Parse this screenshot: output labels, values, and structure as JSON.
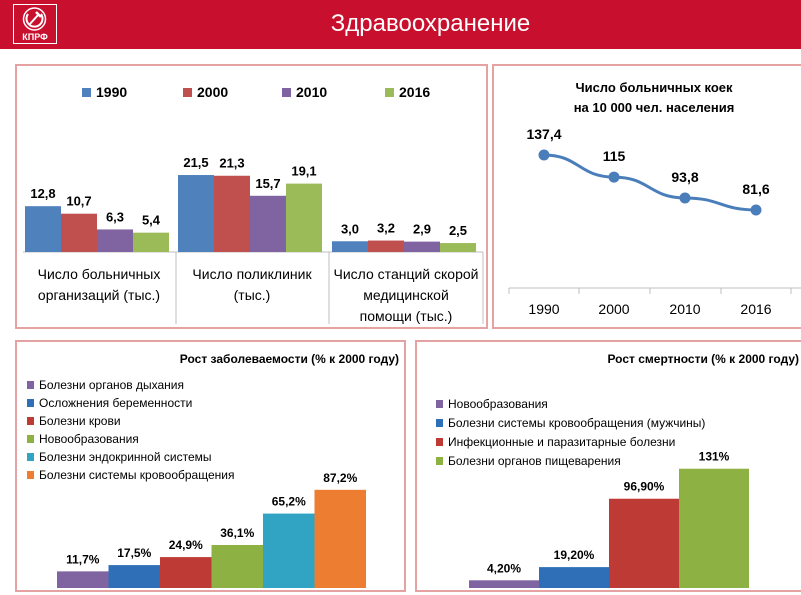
{
  "header": {
    "title": "Здравоохранение",
    "logo_text": "КПРФ",
    "background_color": "#c8102e"
  },
  "chart_data": [
    {
      "type": "bar",
      "title": "",
      "categories": [
        [
          "Число больничных",
          "организаций (тыс.)"
        ],
        [
          "Число поликлиник",
          "(тыс.)"
        ],
        [
          "Число станций скорой",
          "медицинской",
          "помощи (тыс.)"
        ]
      ],
      "series": [
        {
          "name": "1990",
          "color": "#4f81bd",
          "values": [
            12.8,
            21.5,
            3.0
          ],
          "labels": [
            "12,8",
            "21,5",
            "3,0"
          ]
        },
        {
          "name": "2000",
          "color": "#c0504d",
          "values": [
            10.7,
            21.3,
            3.2
          ],
          "labels": [
            "10,7",
            "21,3",
            "3,2"
          ]
        },
        {
          "name": "2010",
          "color": "#8064a2",
          "values": [
            6.3,
            15.7,
            2.9
          ],
          "labels": [
            "6,3",
            "15,7",
            "2,9"
          ]
        },
        {
          "name": "2016",
          "color": "#9bbb59",
          "values": [
            5.4,
            19.1,
            2.5
          ],
          "labels": [
            "5,4",
            "19,1",
            "2,5"
          ]
        }
      ],
      "legend": "top",
      "ylim": [
        0,
        25
      ]
    },
    {
      "type": "line",
      "title": [
        "Число больничных коек",
        "на 10 000 чел. населения"
      ],
      "x": [
        "1990",
        "2000",
        "2010",
        "2016"
      ],
      "series": [
        {
          "name": "beds",
          "color": "#4a7ebb",
          "values": [
            137.4,
            115,
            93.8,
            81.6
          ],
          "labels": [
            "137,4",
            "115",
            "93,8",
            "81,6"
          ]
        }
      ],
      "ylim": [
        60,
        160
      ]
    },
    {
      "type": "bar",
      "title": "Рост заболеваемости (% к 2000 году)",
      "series": [
        {
          "name": "Болезни органов дыхания",
          "color": "#8064a2",
          "value": 11.7,
          "label": "11,7%"
        },
        {
          "name": "Осложнения беременности",
          "color": "#2e6fb7",
          "value": 17.5,
          "label": "17,5%"
        },
        {
          "name": "Болезни крови",
          "color": "#be3a34",
          "value": 24.9,
          "label": "24,9%"
        },
        {
          "name": "Новообразования",
          "color": "#8db143",
          "value": 36.1,
          "label": "36,1%"
        },
        {
          "name": "Болезни эндокринной системы",
          "color": "#31a4c4",
          "value": 65.2,
          "label": "65,2%"
        },
        {
          "name": "Болезни системы кровообращения",
          "color": "#ed7d31",
          "value": 87.2,
          "label": "87,2%"
        }
      ],
      "legend": "top-left",
      "ylim": [
        0,
        100
      ]
    },
    {
      "type": "bar",
      "title": "Рост смертности (% к 2000 году)",
      "series": [
        {
          "name": "Новообразования",
          "color": "#8064a2",
          "value": 4.2,
          "label": "4,20%"
        },
        {
          "name": "Болезни системы кровообращения (мужчины)",
          "color": "#2e6fb7",
          "value": 19.2,
          "label": "19,20%"
        },
        {
          "name": "Инфекционные и паразитарные болезни",
          "color": "#be3a34",
          "value": 96.9,
          "label": "96,90%"
        },
        {
          "name": "Болезни органов пищеварения",
          "color": "#8db143",
          "value": 131,
          "label": "131%"
        }
      ],
      "legend": "top-left",
      "ylim": [
        0,
        140
      ]
    }
  ]
}
